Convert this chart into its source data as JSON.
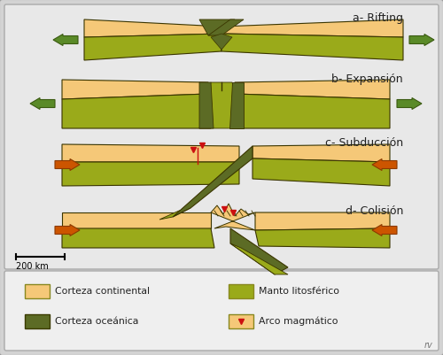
{
  "bg_outer": "#d3d3d3",
  "bg_inner": "#e8e8e8",
  "bg_legend": "#efefef",
  "color_continental": "#f5c878",
  "color_oceanic": "#5c6b25",
  "color_mantle": "#9aaa1a",
  "color_mantle_dark": "#7a8a10",
  "color_arrow_green": "#5a8a28",
  "color_arrow_orange": "#cc5500",
  "color_outline": "#3a3500",
  "color_red": "#cc1010",
  "labels": [
    "a- Rifting",
    "b- Expansión",
    "c- Subducción",
    "d- Colisión"
  ],
  "scalebar_label": "200 km"
}
